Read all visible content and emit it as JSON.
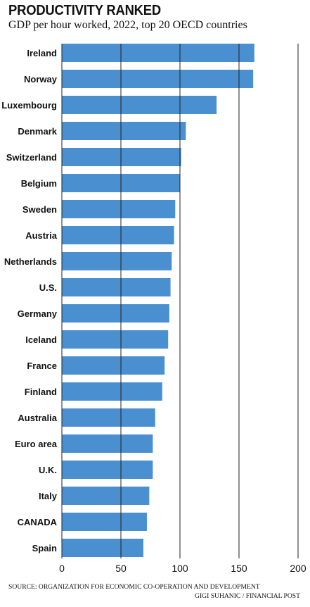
{
  "header": {
    "title": "PRODUCTIVITY RANKED",
    "subtitle": "GDP per hour worked, 2022, top 20 OECD countries"
  },
  "footer": {
    "source": "SOURCE: ORGANIZATION FOR ECONOMIC CO-OPERATION AND DEVELOPMENT",
    "credit": "GIGI SUHANIC / FINANCIAL POST"
  },
  "colors": {
    "bar": "#4a8fd0",
    "grid": "#222222"
  },
  "chart_data": {
    "type": "bar",
    "orientation": "horizontal",
    "title": "PRODUCTIVITY RANKED",
    "subtitle": "GDP per hour worked, 2022, top 20 OECD countries",
    "categories": [
      "Ireland",
      "Norway",
      "Luxembourg",
      "Denmark",
      "Switzerland",
      "Belgium",
      "Sweden",
      "Austria",
      "Netherlands",
      "U.S.",
      "Germany",
      "Iceland",
      "France",
      "Finland",
      "Australia",
      "Euro area",
      "U.K.",
      "Italy",
      "CANADA",
      "Spain"
    ],
    "values": [
      163,
      162,
      131,
      105,
      101,
      100,
      96,
      95,
      93,
      92,
      91,
      90,
      87,
      85,
      79,
      77,
      77,
      74,
      72,
      69
    ],
    "xlim": [
      0,
      200
    ],
    "xticks": [
      0,
      50,
      100,
      150,
      200
    ],
    "grid": true
  }
}
